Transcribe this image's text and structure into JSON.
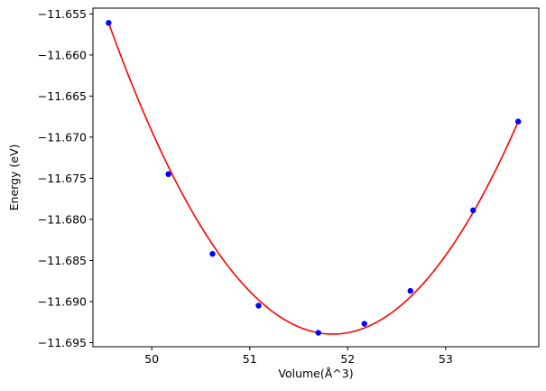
{
  "chart_data": {
    "type": "scatter",
    "title": "",
    "xlabel": "Volume(Å^3)",
    "ylabel": "Energy (eV)",
    "xlim": [
      49.4,
      53.95
    ],
    "ylim": [
      -11.6955,
      -11.6543
    ],
    "x_ticks": [
      {
        "value": 50,
        "label": "50"
      },
      {
        "value": 51,
        "label": "51"
      },
      {
        "value": 52,
        "label": "52"
      },
      {
        "value": 53,
        "label": "53"
      }
    ],
    "y_ticks": [
      {
        "value": -11.655,
        "label": "−11.655"
      },
      {
        "value": -11.66,
        "label": "−11.660"
      },
      {
        "value": -11.665,
        "label": "−11.665"
      },
      {
        "value": -11.67,
        "label": "−11.670"
      },
      {
        "value": -11.675,
        "label": "−11.675"
      },
      {
        "value": -11.68,
        "label": "−11.680"
      },
      {
        "value": -11.685,
        "label": "−11.685"
      },
      {
        "value": -11.69,
        "label": "−11.690"
      },
      {
        "value": -11.695,
        "label": "−11.695"
      }
    ],
    "grid": false,
    "series": [
      {
        "kind": "points",
        "color": "#0000ff",
        "marker": "circle",
        "x": [
          49.56,
          50.17,
          50.62,
          51.09,
          51.7,
          52.17,
          52.64,
          53.28,
          53.74
        ],
        "y": [
          -11.6561,
          -11.6745,
          -11.6842,
          -11.6905,
          -11.6938,
          -11.6927,
          -11.6887,
          -11.6789,
          -11.6681
        ]
      },
      {
        "kind": "fit-curve",
        "color": "#ff0000",
        "x_range": [
          49.56,
          53.74
        ],
        "fit_points": [
          [
            49.56,
            -11.6561
          ],
          [
            51.7,
            -11.6938
          ],
          [
            53.74,
            -11.6681
          ]
        ],
        "vertex": [
          51.75,
          -11.6939
        ]
      }
    ]
  }
}
